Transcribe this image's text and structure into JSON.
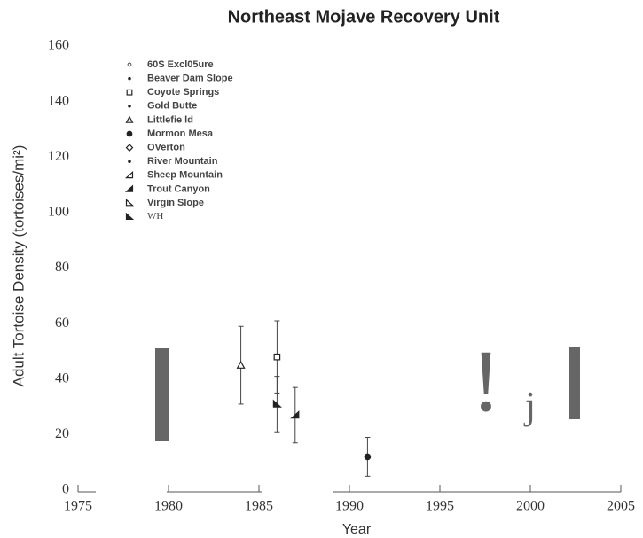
{
  "chart_data": {
    "type": "scatter",
    "title": "Northeast Mojave Recovery Unit",
    "x_label": "Year",
    "y_label": "Adult Tortoise Density (tortoises/mi²)",
    "xlim": [
      1975,
      2005
    ],
    "xticks": [
      1975,
      1980,
      1985,
      1990,
      1995,
      2000,
      2005
    ],
    "ylim": [
      0,
      160
    ],
    "yticks": [
      0,
      20,
      40,
      60,
      80,
      100,
      120,
      140,
      160
    ],
    "annotations": [
      "!",
      "j"
    ],
    "series": [
      {
        "name": "60S Excl05ure",
        "marker": "open-circle-small",
        "x": [],
        "values": [],
        "errors": []
      },
      {
        "name": "Beaver Dam Slope",
        "marker": "dot",
        "x": [],
        "values": [],
        "errors": []
      },
      {
        "name": "Coyote Springs",
        "marker": "open-circle",
        "x": [
          1986
        ],
        "values": [
          48
        ],
        "errors": [
          13
        ]
      },
      {
        "name": "Gold Butte",
        "marker": "dot",
        "x": [],
        "values": [],
        "errors": []
      },
      {
        "name": "Littlefie ld",
        "marker": "open-triangle",
        "x": [
          1984
        ],
        "values": [
          45
        ],
        "errors": [
          14
        ]
      },
      {
        "name": "Mormon Mesa",
        "marker": "circle",
        "x": [
          1991
        ],
        "values": [
          12
        ],
        "errors": [
          7
        ]
      },
      {
        "name": "OVerton",
        "marker": "open-diamond",
        "x": [],
        "values": [],
        "errors": []
      },
      {
        "name": "River Mountain",
        "marker": "dot",
        "x": [],
        "values": [],
        "errors": []
      },
      {
        "name": "Sheep Mountain",
        "marker": "half-triangle",
        "x": [],
        "values": [],
        "errors": []
      },
      {
        "name": "Trout Canyon",
        "marker": "filled-half-triangle",
        "x": [
          1987
        ],
        "values": [
          27
        ],
        "errors": [
          10
        ]
      },
      {
        "name": "Virgin Slope",
        "marker": "open-corner",
        "x": [],
        "values": [],
        "errors": []
      },
      {
        "name": "WH",
        "marker": "filled-corner",
        "x": [
          1986
        ],
        "values": [
          31
        ],
        "errors": [
          10
        ]
      }
    ]
  }
}
